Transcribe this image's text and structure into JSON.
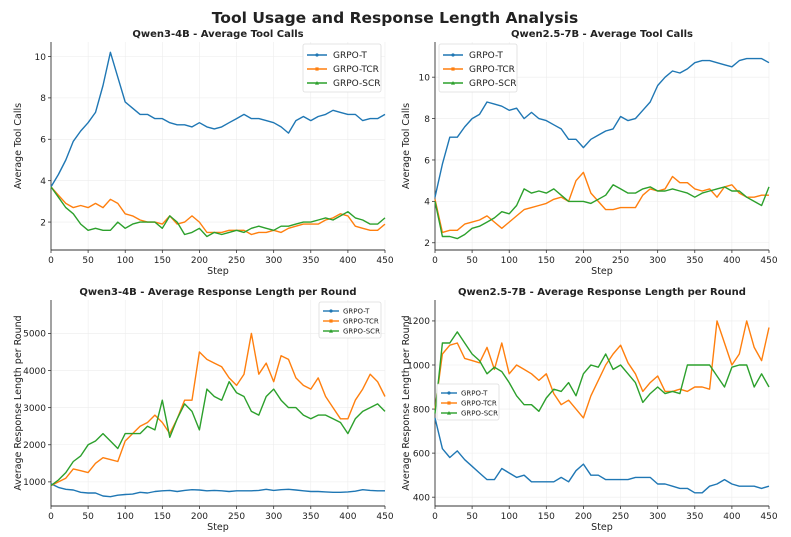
{
  "title": "Tool Usage and Response Length Analysis",
  "colors": {
    "GRPO-T": "#1f77b4",
    "GRPO-TCR": "#ff7f0e",
    "GRPO-SCR": "#2ca02c"
  },
  "chart_data": [
    {
      "type": "line",
      "title": "Qwen3-4B - Average Tool Calls",
      "xlabel": "Step",
      "ylabel": "Average Tool Calls",
      "xlim": [
        0,
        450
      ],
      "ylim": [
        0.65,
        10.7
      ],
      "xticks": [
        0,
        50,
        100,
        150,
        200,
        250,
        300,
        350,
        400,
        450
      ],
      "yticks": [
        2,
        4,
        6,
        8,
        10
      ],
      "grid": true,
      "legend": "top-right",
      "x": [
        0,
        10,
        20,
        30,
        40,
        50,
        60,
        70,
        80,
        90,
        100,
        110,
        120,
        130,
        140,
        150,
        160,
        170,
        180,
        190,
        200,
        210,
        220,
        230,
        240,
        250,
        260,
        270,
        280,
        290,
        300,
        310,
        320,
        330,
        340,
        350,
        360,
        370,
        380,
        390,
        400,
        410,
        420,
        430,
        440,
        450
      ],
      "series": [
        {
          "name": "GRPO-T",
          "values": [
            3.7,
            4.3,
            5.0,
            5.9,
            6.4,
            6.8,
            7.3,
            8.6,
            10.2,
            9.0,
            7.8,
            7.5,
            7.2,
            7.2,
            7.0,
            7.0,
            6.8,
            6.7,
            6.7,
            6.6,
            6.8,
            6.6,
            6.5,
            6.6,
            6.8,
            7.0,
            7.2,
            7.0,
            7.0,
            6.9,
            6.8,
            6.6,
            6.3,
            6.9,
            7.1,
            6.9,
            7.1,
            7.2,
            7.4,
            7.3,
            7.2,
            7.2,
            6.9,
            7.0,
            7.0,
            7.2
          ]
        },
        {
          "name": "GRPO-TCR",
          "values": [
            3.7,
            3.3,
            2.9,
            2.7,
            2.8,
            2.7,
            2.9,
            2.7,
            3.1,
            2.9,
            2.4,
            2.3,
            2.1,
            2.0,
            2.0,
            1.9,
            2.3,
            1.9,
            2.0,
            2.3,
            2.0,
            1.5,
            1.5,
            1.5,
            1.6,
            1.6,
            1.6,
            1.4,
            1.5,
            1.5,
            1.6,
            1.5,
            1.7,
            1.8,
            1.9,
            1.9,
            1.9,
            2.1,
            2.2,
            2.4,
            2.3,
            1.8,
            1.7,
            1.6,
            1.6,
            1.9
          ]
        },
        {
          "name": "GRPO-SCR",
          "values": [
            3.7,
            3.2,
            2.7,
            2.4,
            1.9,
            1.6,
            1.7,
            1.6,
            1.6,
            2.0,
            1.7,
            1.9,
            2.0,
            2.0,
            2.0,
            1.7,
            2.3,
            2.0,
            1.4,
            1.5,
            1.7,
            1.3,
            1.5,
            1.4,
            1.5,
            1.6,
            1.5,
            1.7,
            1.8,
            1.7,
            1.6,
            1.8,
            1.8,
            1.9,
            2.0,
            2.0,
            2.1,
            2.2,
            2.1,
            2.3,
            2.5,
            2.2,
            2.1,
            1.9,
            1.9,
            2.2
          ]
        }
      ]
    },
    {
      "type": "line",
      "title": "Qwen2.5-7B - Average Tool Calls",
      "xlabel": "Step",
      "ylabel": "Average Tool Calls",
      "xlim": [
        0,
        450
      ],
      "ylim": [
        1.65,
        11.7
      ],
      "xticks": [
        0,
        50,
        100,
        150,
        200,
        250,
        300,
        350,
        400,
        450
      ],
      "yticks": [
        2,
        4,
        6,
        8,
        10
      ],
      "grid": true,
      "legend": "top-left",
      "x": [
        0,
        10,
        20,
        30,
        40,
        50,
        60,
        70,
        80,
        90,
        100,
        110,
        120,
        130,
        140,
        150,
        160,
        170,
        180,
        190,
        200,
        210,
        220,
        230,
        240,
        250,
        260,
        270,
        280,
        290,
        300,
        310,
        320,
        330,
        340,
        350,
        360,
        370,
        380,
        390,
        400,
        410,
        420,
        430,
        440,
        450
      ],
      "series": [
        {
          "name": "GRPO-T",
          "values": [
            4.2,
            5.8,
            7.1,
            7.1,
            7.6,
            8.0,
            8.2,
            8.8,
            8.7,
            8.6,
            8.4,
            8.5,
            8.0,
            8.3,
            8.0,
            7.9,
            7.7,
            7.5,
            7.0,
            7.0,
            6.6,
            7.0,
            7.2,
            7.4,
            7.5,
            8.1,
            7.9,
            8.0,
            8.4,
            8.8,
            9.6,
            10.0,
            10.3,
            10.2,
            10.4,
            10.7,
            10.8,
            10.8,
            10.7,
            10.6,
            10.5,
            10.8,
            10.9,
            10.9,
            10.9,
            10.7
          ]
        },
        {
          "name": "GRPO-TCR",
          "values": [
            4.1,
            2.5,
            2.6,
            2.6,
            2.9,
            3.0,
            3.1,
            3.3,
            3.0,
            2.7,
            3.0,
            3.3,
            3.6,
            3.7,
            3.8,
            3.9,
            4.1,
            4.2,
            4.0,
            5.0,
            5.4,
            4.4,
            4.0,
            3.6,
            3.6,
            3.7,
            3.7,
            3.7,
            4.3,
            4.6,
            4.5,
            4.6,
            5.2,
            4.9,
            4.9,
            4.6,
            4.5,
            4.6,
            4.2,
            4.7,
            4.8,
            4.4,
            4.2,
            4.2,
            4.3,
            4.3
          ]
        },
        {
          "name": "GRPO-SCR",
          "values": [
            4.0,
            2.3,
            2.3,
            2.2,
            2.4,
            2.7,
            2.8,
            3.0,
            3.2,
            3.5,
            3.4,
            3.8,
            4.6,
            4.4,
            4.5,
            4.4,
            4.6,
            4.3,
            4.0,
            4.0,
            4.0,
            3.9,
            4.1,
            4.3,
            4.8,
            4.6,
            4.4,
            4.4,
            4.6,
            4.7,
            4.5,
            4.5,
            4.6,
            4.5,
            4.4,
            4.2,
            4.4,
            4.5,
            4.6,
            4.7,
            4.5,
            4.5,
            4.2,
            4.0,
            3.8,
            4.7
          ]
        }
      ]
    },
    {
      "type": "line",
      "title": "Qwen3-4B - Average Response Length per Round",
      "xlabel": "Step",
      "ylabel": "Average Response Length per Round",
      "xlim": [
        0,
        450
      ],
      "ylim": [
        350,
        5900
      ],
      "xticks": [
        0,
        50,
        100,
        150,
        200,
        250,
        300,
        350,
        400,
        450
      ],
      "yticks": [
        1000,
        2000,
        3000,
        4000,
        5000
      ],
      "grid": true,
      "legend": "top-right",
      "x": [
        0,
        10,
        20,
        30,
        40,
        50,
        60,
        70,
        80,
        90,
        100,
        110,
        120,
        130,
        140,
        150,
        160,
        170,
        180,
        190,
        200,
        210,
        220,
        230,
        240,
        250,
        260,
        270,
        280,
        290,
        300,
        310,
        320,
        330,
        340,
        350,
        360,
        370,
        380,
        390,
        400,
        410,
        420,
        430,
        440,
        450
      ],
      "series": [
        {
          "name": "GRPO-T",
          "values": [
            950,
            850,
            800,
            780,
            720,
            700,
            700,
            620,
            600,
            640,
            660,
            670,
            720,
            700,
            740,
            760,
            770,
            740,
            770,
            790,
            780,
            760,
            770,
            760,
            740,
            760,
            760,
            760,
            770,
            800,
            770,
            790,
            800,
            780,
            760,
            740,
            740,
            730,
            720,
            720,
            730,
            750,
            790,
            770,
            760,
            760
          ]
        },
        {
          "name": "GRPO-TCR",
          "values": [
            900,
            1000,
            1100,
            1350,
            1300,
            1250,
            1500,
            1650,
            1600,
            1550,
            2100,
            2300,
            2500,
            2600,
            2800,
            2600,
            2300,
            2700,
            3200,
            3200,
            4500,
            4300,
            4200,
            4100,
            3800,
            3600,
            3900,
            5000,
            3900,
            4200,
            3700,
            4400,
            4300,
            3800,
            3600,
            3500,
            3800,
            3300,
            3000,
            2700,
            2700,
            3200,
            3500,
            3900,
            3700,
            3300
          ]
        },
        {
          "name": "GRPO-SCR",
          "values": [
            900,
            1050,
            1250,
            1550,
            1700,
            2000,
            2100,
            2300,
            2100,
            1900,
            2300,
            2300,
            2300,
            2500,
            2400,
            3200,
            2200,
            2700,
            3100,
            2900,
            2400,
            3500,
            3300,
            3200,
            3700,
            3400,
            3300,
            2900,
            2800,
            3300,
            3500,
            3200,
            3000,
            3000,
            2800,
            2700,
            2800,
            2800,
            2700,
            2600,
            2300,
            2700,
            2900,
            3000,
            3100,
            2900
          ]
        }
      ]
    },
    {
      "type": "line",
      "title": "Qwen2.5-7B - Average Response Length per Round",
      "xlabel": "Step",
      "ylabel": "Average Response Length per Round",
      "xlim": [
        0,
        450
      ],
      "ylim": [
        360,
        1295
      ],
      "xticks": [
        0,
        50,
        100,
        150,
        200,
        250,
        300,
        350,
        400,
        450
      ],
      "yticks": [
        400,
        600,
        800,
        1000,
        1200
      ],
      "grid": true,
      "legend": "center-left",
      "x": [
        0,
        10,
        20,
        30,
        40,
        50,
        60,
        70,
        80,
        90,
        100,
        110,
        120,
        130,
        140,
        150,
        160,
        170,
        180,
        190,
        200,
        210,
        220,
        230,
        240,
        250,
        260,
        270,
        280,
        290,
        300,
        310,
        320,
        330,
        340,
        350,
        360,
        370,
        380,
        390,
        400,
        410,
        420,
        430,
        440,
        450
      ],
      "series": [
        {
          "name": "GRPO-T",
          "values": [
            760,
            620,
            580,
            610,
            570,
            540,
            510,
            480,
            480,
            530,
            510,
            490,
            500,
            470,
            470,
            470,
            470,
            490,
            470,
            520,
            550,
            500,
            500,
            480,
            480,
            480,
            480,
            490,
            490,
            490,
            460,
            460,
            450,
            440,
            440,
            420,
            420,
            450,
            460,
            480,
            460,
            450,
            450,
            450,
            440,
            450
          ]
        },
        {
          "name": "GRPO-TCR",
          "values": [
            800,
            1050,
            1090,
            1100,
            1030,
            1020,
            1010,
            1080,
            980,
            1100,
            960,
            1000,
            980,
            960,
            930,
            960,
            870,
            820,
            840,
            800,
            760,
            860,
            930,
            1000,
            1050,
            1090,
            1010,
            960,
            880,
            920,
            950,
            880,
            880,
            890,
            880,
            900,
            900,
            890,
            1200,
            1100,
            1000,
            1050,
            1200,
            1080,
            1020,
            1170
          ]
        },
        {
          "name": "GRPO-SCR",
          "values": [
            780,
            1100,
            1100,
            1150,
            1100,
            1050,
            1020,
            960,
            990,
            970,
            920,
            860,
            820,
            820,
            790,
            850,
            890,
            880,
            920,
            860,
            960,
            1000,
            990,
            1050,
            980,
            1000,
            960,
            920,
            830,
            870,
            900,
            870,
            880,
            870,
            1000,
            1000,
            1000,
            1000,
            950,
            900,
            990,
            1000,
            1000,
            900,
            960,
            900
          ]
        }
      ]
    }
  ]
}
